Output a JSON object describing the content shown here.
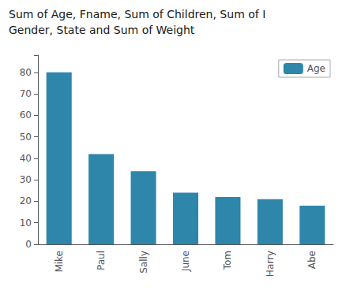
{
  "chart_data": {
    "type": "bar",
    "title": "Sum of Age, Fname, Sum of Children, Sum of I",
    "subtitle": "Gender, State and Sum of Weight",
    "categories": [
      "Mike",
      "Paul",
      "Sally",
      "June",
      "Tom",
      "Harry",
      "Abe"
    ],
    "series": [
      {
        "name": "Age",
        "color": "#2e86ab",
        "values": [
          80,
          42,
          34,
          24,
          22,
          21,
          18
        ]
      }
    ],
    "ylim": [
      0,
      88
    ],
    "yticks": [
      0,
      10,
      20,
      30,
      40,
      50,
      60,
      70,
      80
    ],
    "grid": false,
    "legend": "upper right"
  }
}
